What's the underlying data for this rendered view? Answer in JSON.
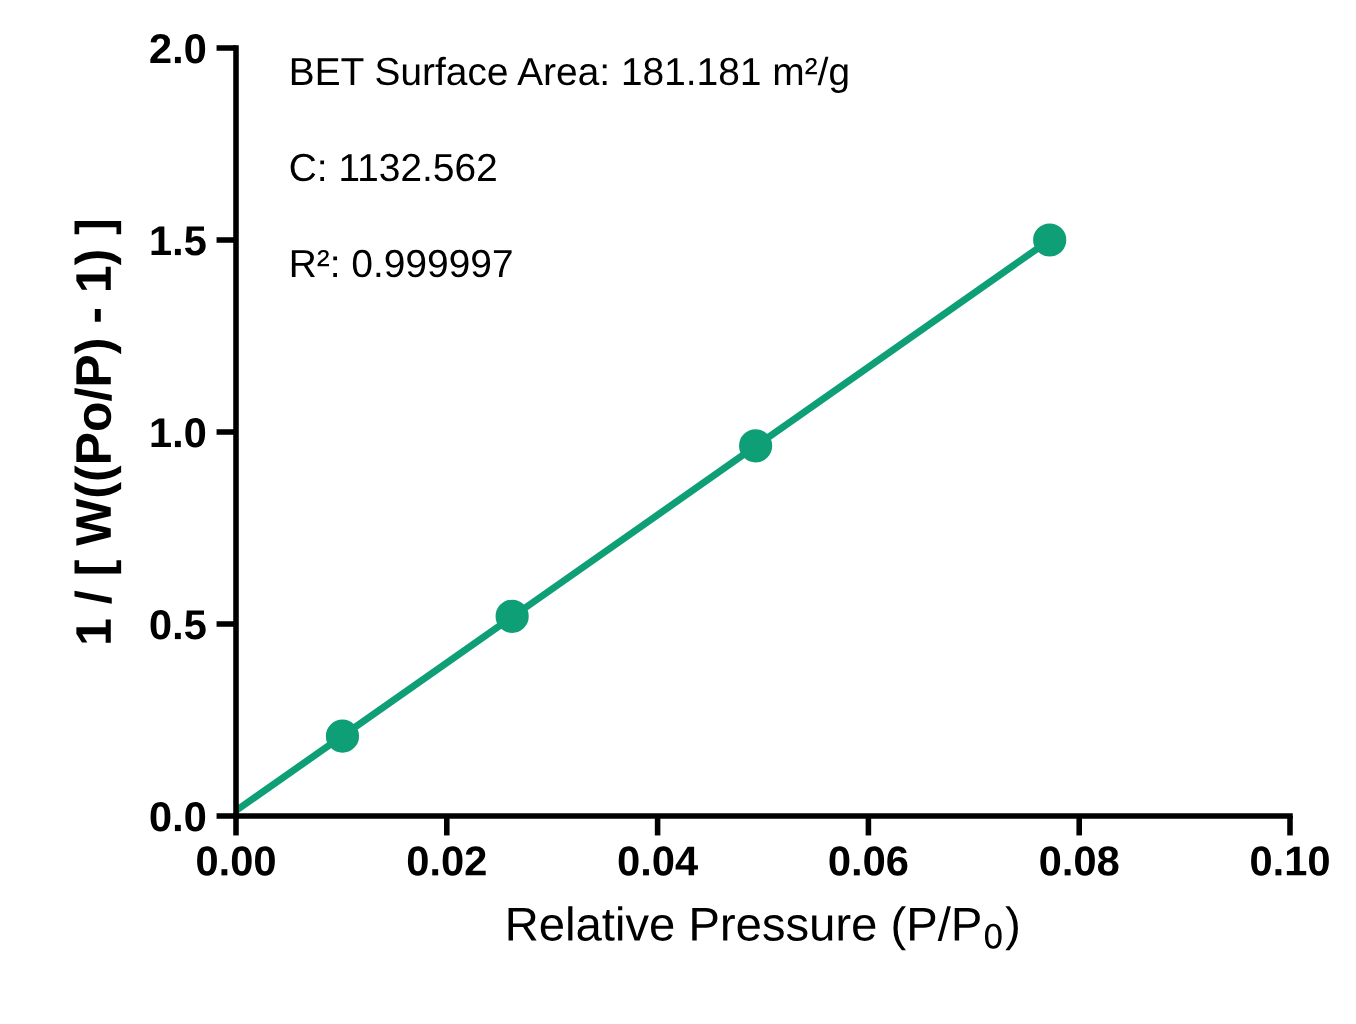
{
  "chart_data": {
    "type": "scatter",
    "xlabel": "Relative Pressure (P/P$_{0}$)",
    "ylabel": "1 / [ W((Po/P) - 1) ]",
    "series": [
      {
        "color": "#0e9f77",
        "x": [
          0.0101,
          0.0262,
          0.0493,
          0.0772
        ],
        "values": [
          0.208,
          0.52,
          0.964,
          1.5
        ],
        "marker": "circle"
      },
      {
        "type": "line",
        "color": "#0e9f77",
        "x": [
          0,
          0.0772
        ],
        "values": [
          0.014,
          1.5
        ],
        "marker": "none"
      }
    ],
    "xlim": [
      0,
      0.1
    ],
    "ylim": [
      0,
      2.0
    ],
    "xticks": [
      {
        "value": 0,
        "label": "0.00"
      },
      {
        "value": 0.02,
        "label": "0.02"
      },
      {
        "value": 0.04,
        "label": "0.04"
      },
      {
        "value": 0.06,
        "label": "0.06"
      },
      {
        "value": 0.08,
        "label": "0.08"
      },
      {
        "value": 0.1,
        "label": "0.10"
      }
    ],
    "yticks": [
      {
        "value": 0,
        "label": "0.0"
      },
      {
        "value": 0.5,
        "label": "0.5"
      },
      {
        "value": 1.0,
        "label": "1.0"
      },
      {
        "value": 1.5,
        "label": "1.5"
      },
      {
        "value": 2.0,
        "label": "2.0"
      }
    ],
    "annotations": [
      "BET Surface Area: 181.181 m²/g",
      "C: 1132.562",
      "R²: 0.999997"
    ],
    "grid": false
  }
}
